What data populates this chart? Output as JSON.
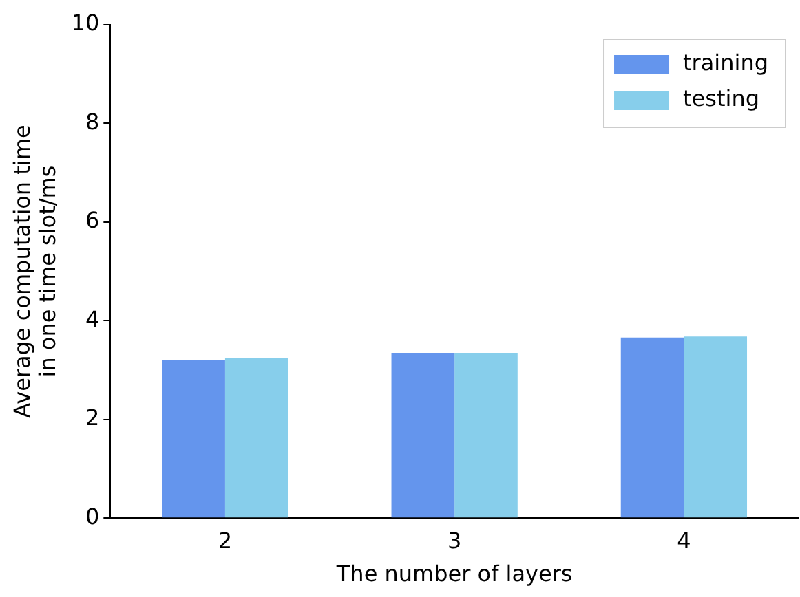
{
  "chart_data": {
    "type": "bar",
    "xlabel": "The number of layers",
    "ylabel": "Average computation time\nin one time slot/ms",
    "categories": [
      "2",
      "3",
      "4"
    ],
    "series": [
      {
        "name": "training",
        "color": "#6495ed",
        "values": [
          3.21,
          3.35,
          3.66
        ]
      },
      {
        "name": "testing",
        "color": "#87ceeb",
        "values": [
          3.24,
          3.35,
          3.68
        ]
      }
    ],
    "ylim": [
      0,
      10
    ],
    "yticks": [
      0,
      2,
      4,
      6,
      8,
      10
    ],
    "grid": false,
    "legend": "top right"
  }
}
